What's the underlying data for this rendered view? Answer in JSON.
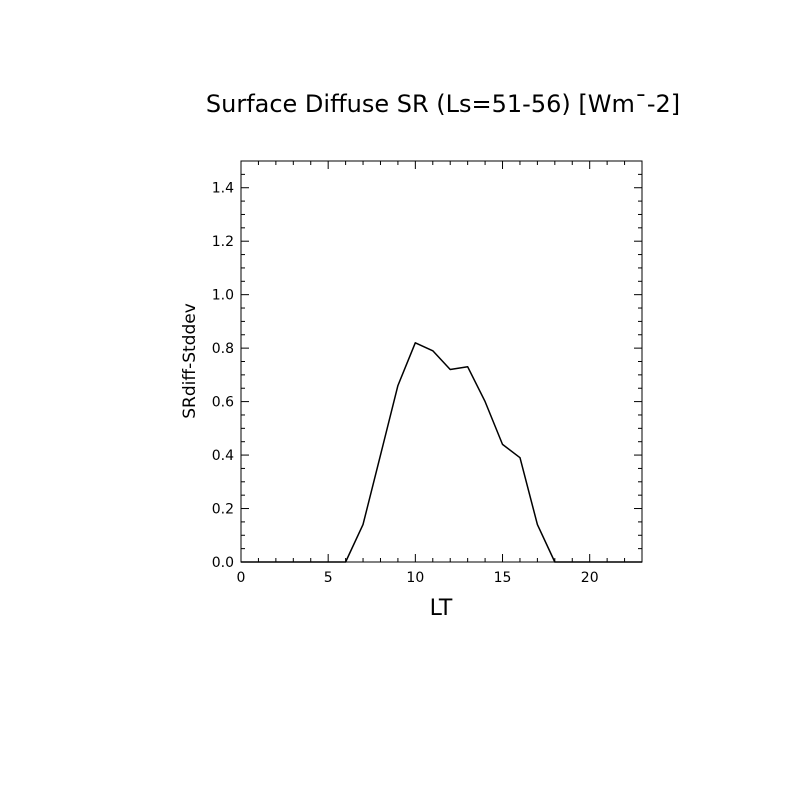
{
  "chart_data": {
    "type": "line",
    "title": "Surface Diffuse SR (Ls=51-56) [Wm¯-2]",
    "xlabel": "LT",
    "ylabel": "SRdiff-Stddev",
    "xlim": [
      0,
      23
    ],
    "ylim": [
      0,
      1.5
    ],
    "xticks": [
      "0",
      "5",
      "10",
      "15",
      "20"
    ],
    "yticks": [
      "0.0",
      "0.2",
      "0.4",
      "0.6",
      "0.8",
      "1.0",
      "1.2",
      "1.4"
    ],
    "grid": false,
    "series": [
      {
        "x": [
          0,
          1,
          2,
          3,
          4,
          5,
          6,
          7,
          8,
          9,
          10,
          11,
          12,
          13,
          14,
          15,
          16,
          17,
          18,
          19,
          20,
          21,
          22,
          23
        ],
        "values": [
          0,
          0,
          0,
          0,
          0,
          0,
          0,
          0.14,
          0.4,
          0.66,
          0.82,
          0.79,
          0.72,
          0.73,
          0.6,
          0.44,
          0.39,
          0.14,
          0,
          0,
          0,
          0,
          0,
          0
        ]
      }
    ]
  }
}
